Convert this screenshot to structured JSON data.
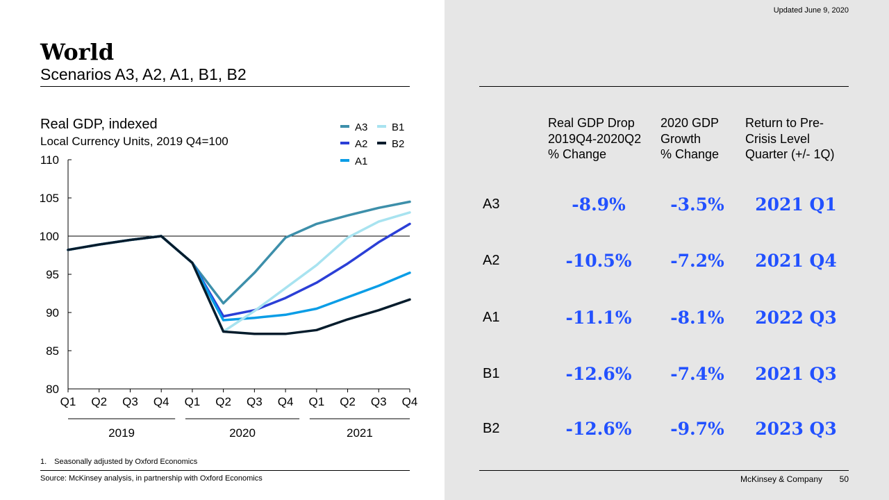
{
  "header": {
    "title": "World",
    "subtitle": "Scenarios A3, A2, A1, B1, B2",
    "updated": "Updated June 9, 2020"
  },
  "chart_data": {
    "type": "line",
    "title": "Real GDP, indexed",
    "subtitle": "Local Currency Units, 2019 Q4=100",
    "x": [
      "Q1",
      "Q2",
      "Q3",
      "Q4",
      "Q1",
      "Q2",
      "Q3",
      "Q4",
      "Q1",
      "Q2",
      "Q3",
      "Q4"
    ],
    "year_groups": [
      {
        "label": "2019",
        "from": 0,
        "to": 3
      },
      {
        "label": "2020",
        "from": 4,
        "to": 7
      },
      {
        "label": "2021",
        "from": 8,
        "to": 11
      }
    ],
    "ylim": [
      80,
      110
    ],
    "yticks": [
      80,
      85,
      90,
      95,
      100,
      105,
      110
    ],
    "reference_line": 100,
    "legend_position": "top-right",
    "series": [
      {
        "name": "A3",
        "color": "#3d8faa",
        "values": [
          98.2,
          98.9,
          99.5,
          100,
          96.5,
          91.2,
          95.2,
          99.8,
          101.6,
          102.7,
          103.7,
          104.5
        ]
      },
      {
        "name": "A2",
        "color": "#2b3fd6",
        "values": [
          98.2,
          98.9,
          99.5,
          100,
          96.5,
          89.5,
          90.3,
          91.9,
          93.9,
          96.4,
          99.2,
          101.6
        ]
      },
      {
        "name": "A1",
        "color": "#0a9de6",
        "values": [
          98.2,
          98.9,
          99.5,
          100,
          96.5,
          89.0,
          89.3,
          89.7,
          90.5,
          92.0,
          93.5,
          95.2
        ]
      },
      {
        "name": "B1",
        "color": "#a8e3f0",
        "values": [
          98.2,
          98.9,
          99.5,
          100,
          96.5,
          87.5,
          90.2,
          93.2,
          96.2,
          99.8,
          101.9,
          103.1
        ]
      },
      {
        "name": "B2",
        "color": "#051c2c",
        "values": [
          98.2,
          98.9,
          99.5,
          100,
          96.5,
          87.5,
          87.2,
          87.2,
          87.7,
          89.1,
          90.3,
          91.7
        ]
      }
    ]
  },
  "footnote": "1. Seasonally adjusted by Oxford Economics",
  "source": "Source: McKinsey analysis, in partnership with Oxford Economics",
  "table": {
    "headers": [
      [
        "Real GDP Drop",
        "2019Q4-2020Q2",
        "% Change"
      ],
      [
        "2020 GDP",
        "Growth",
        "% Change"
      ],
      [
        "Return to Pre-",
        "Crisis Level",
        "Quarter (+/- 1Q)"
      ]
    ],
    "rows": [
      {
        "label": "A3",
        "drop": "-8.9%",
        "growth": "-3.5%",
        "return": "2021 Q1"
      },
      {
        "label": "A2",
        "drop": "-10.5%",
        "growth": "-7.2%",
        "return": "2021 Q4"
      },
      {
        "label": "A1",
        "drop": "-11.1%",
        "growth": "-8.1%",
        "return": "2022 Q3"
      },
      {
        "label": "B1",
        "drop": "-12.6%",
        "growth": "-7.4%",
        "return": "2021 Q3"
      },
      {
        "label": "B2",
        "drop": "-12.6%",
        "growth": "-9.7%",
        "return": "2023 Q3"
      }
    ]
  },
  "footer": {
    "company": "McKinsey & Company",
    "page": "50"
  }
}
